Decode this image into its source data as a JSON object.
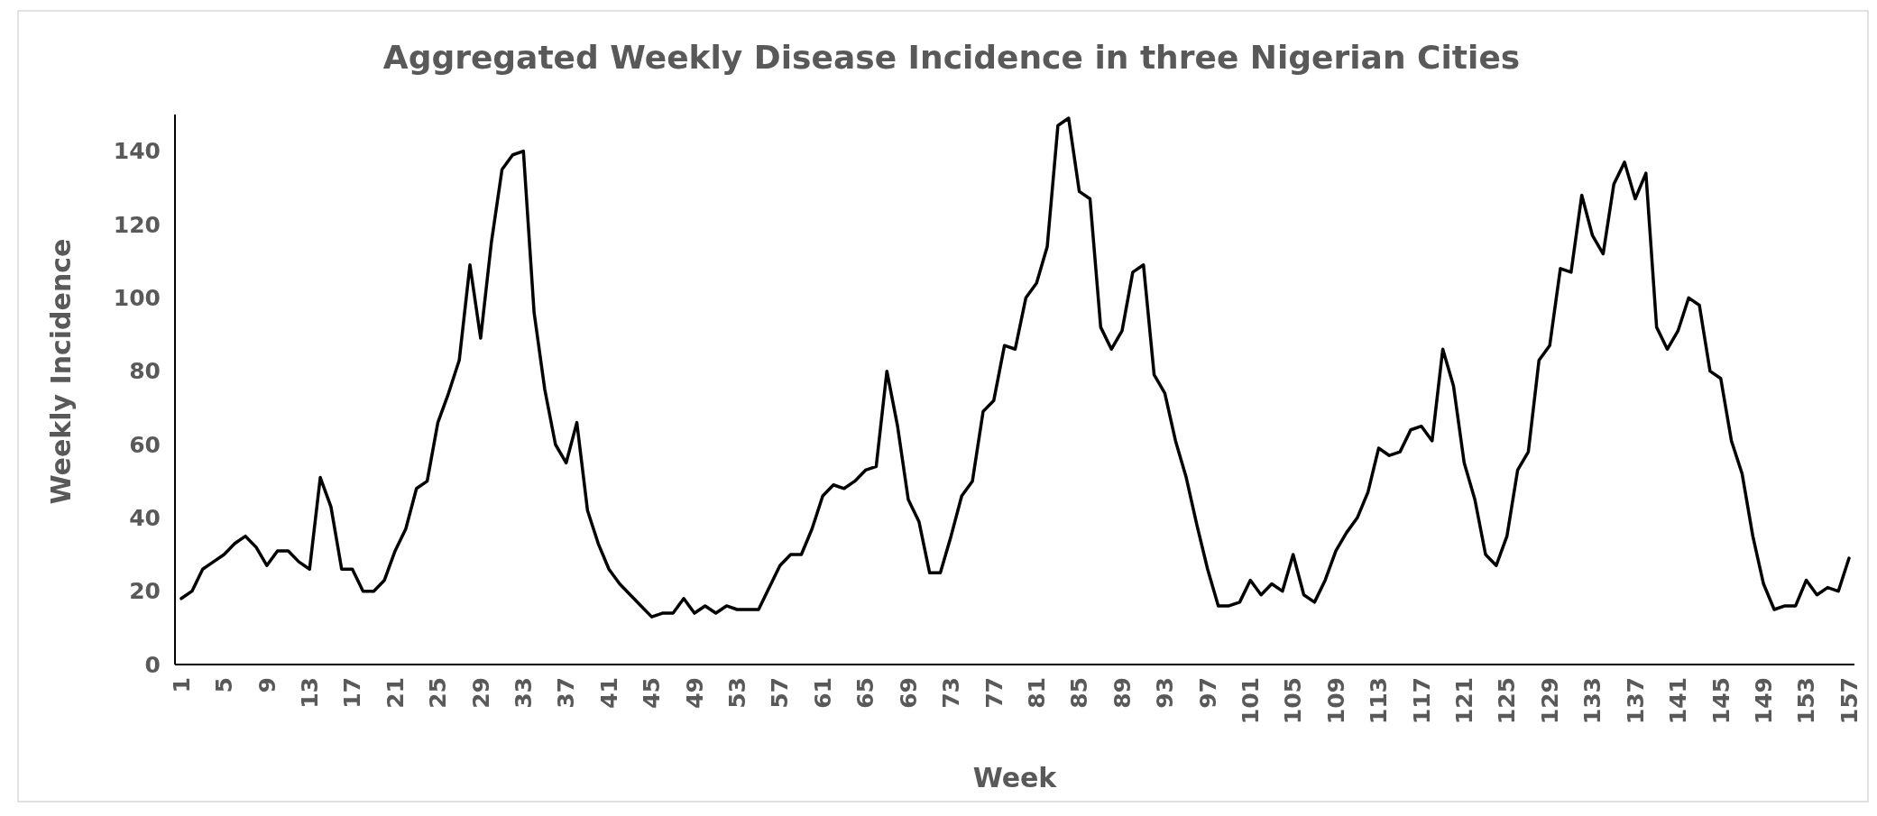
{
  "chart_data": {
    "type": "line",
    "title": "Aggregated Weekly Disease Incidence in three Nigerian Cities",
    "xlabel": "Week",
    "ylabel": "Weekly Incidence",
    "categories": [
      "1",
      null,
      null,
      null,
      "5",
      null,
      null,
      null,
      "9",
      null,
      null,
      null,
      "13",
      null,
      null,
      null,
      "17",
      null,
      null,
      null,
      "21",
      null,
      null,
      null,
      "25",
      null,
      null,
      null,
      "29",
      null,
      null,
      null,
      "33",
      null,
      null,
      null,
      "37",
      null,
      null,
      null,
      "41",
      null,
      null,
      null,
      "45",
      null,
      null,
      null,
      "49",
      null,
      null,
      null,
      "53",
      null,
      null,
      null,
      "57",
      null,
      null,
      null,
      "61",
      null,
      null,
      null,
      "65",
      null,
      null,
      null,
      "69",
      null,
      null,
      null,
      "73",
      null,
      null,
      null,
      "77",
      null,
      null,
      null,
      "81",
      null,
      null,
      null,
      "85",
      null,
      null,
      null,
      "89",
      null,
      null,
      null,
      "93",
      null,
      null,
      null,
      "97",
      null,
      null,
      null,
      "101",
      null,
      null,
      null,
      "105",
      null,
      null,
      null,
      "109",
      null,
      null,
      null,
      "113",
      null,
      null,
      null,
      "117",
      null,
      null,
      null,
      "121",
      null,
      null,
      null,
      "125",
      null,
      null,
      null,
      "129",
      null,
      null,
      null,
      "133",
      null,
      null,
      null,
      "137",
      null,
      null,
      null,
      "141",
      null,
      null,
      null,
      "145",
      null,
      null,
      null,
      "149",
      null,
      null,
      null,
      "153",
      null,
      null,
      null,
      "157"
    ],
    "series": [
      {
        "color": "#000000",
        "values": [
          18,
          20,
          26,
          28,
          30,
          33,
          35,
          32,
          27,
          31,
          31,
          28,
          26,
          51,
          43,
          26,
          26,
          20,
          20,
          23,
          31,
          37,
          48,
          50,
          66,
          74,
          83,
          109,
          89,
          115,
          135,
          139,
          140,
          96,
          75,
          60,
          55,
          66,
          42,
          33,
          26,
          22,
          19,
          16,
          13,
          14,
          14,
          18,
          14,
          16,
          14,
          16,
          15,
          15,
          15,
          21,
          27,
          30,
          30,
          37,
          46,
          49,
          48,
          50,
          53,
          54,
          80,
          65,
          45,
          39,
          25,
          25,
          35,
          46,
          50,
          69,
          72,
          87,
          86,
          100,
          104,
          114,
          147,
          149,
          129,
          127,
          92,
          86,
          91,
          107,
          109,
          79,
          74,
          61,
          51,
          38,
          26,
          16,
          16,
          17,
          23,
          19,
          22,
          20,
          30,
          19,
          17,
          23,
          31,
          36,
          40,
          47,
          59,
          57,
          58,
          64,
          65,
          61,
          86,
          76,
          55,
          45,
          30,
          27,
          35,
          53,
          58,
          83,
          87,
          108,
          107,
          128,
          117,
          112,
          131,
          137,
          127,
          134,
          92,
          86,
          91,
          100,
          98,
          80,
          78,
          61,
          52,
          35,
          22,
          15,
          16,
          16,
          23,
          19,
          21,
          20,
          29
        ]
      }
    ],
    "ylim": [
      0,
      150
    ],
    "yticks": [
      0,
      20,
      40,
      60,
      80,
      100,
      120,
      140
    ],
    "grid": false,
    "line_style": "solid",
    "marker": "none"
  }
}
